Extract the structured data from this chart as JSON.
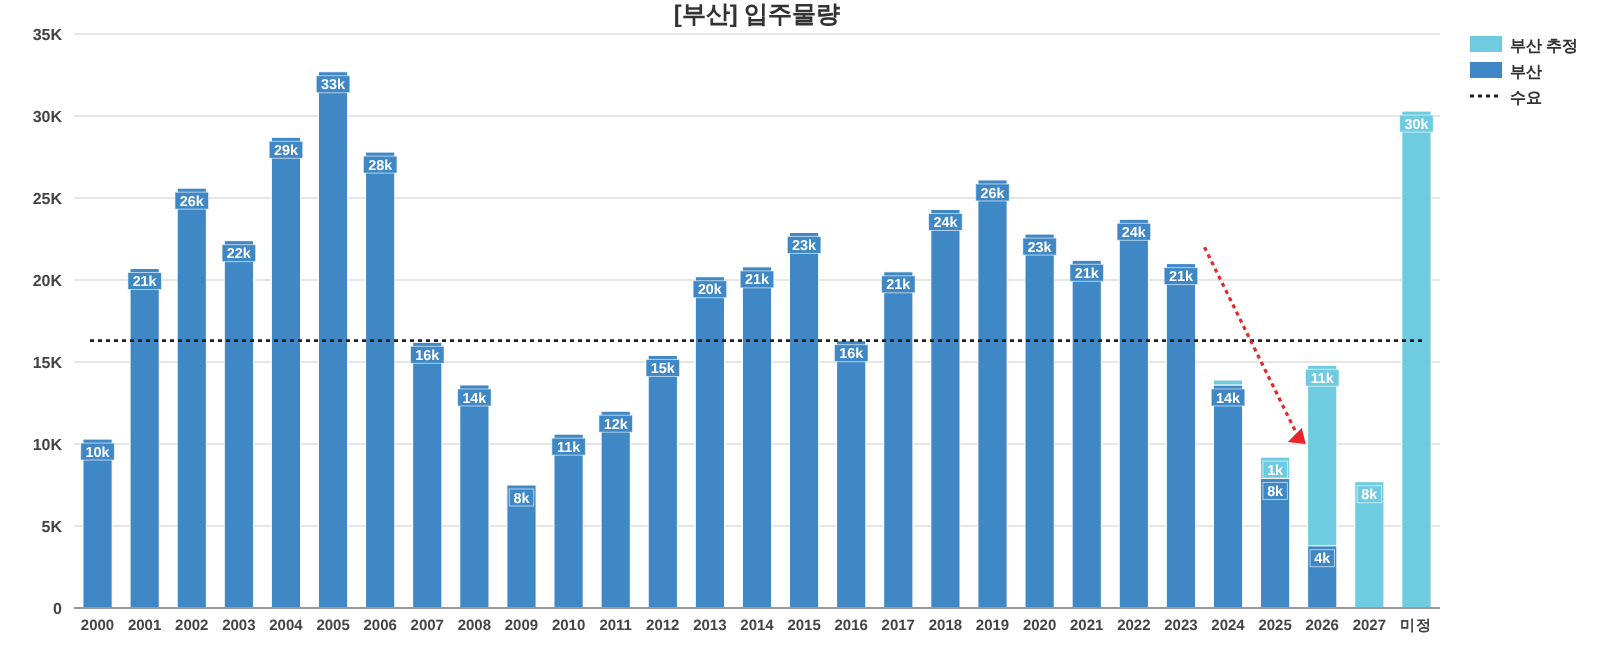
{
  "chart_data": {
    "type": "bar",
    "title": "[부산] 입주물량",
    "stacked": true,
    "grid": "y",
    "legend": "top right",
    "categories": [
      "2000",
      "2001",
      "2002",
      "2003",
      "2004",
      "2005",
      "2006",
      "2007",
      "2008",
      "2009",
      "2010",
      "2011",
      "2012",
      "2013",
      "2014",
      "2015",
      "2016",
      "2017",
      "2018",
      "2019",
      "2020",
      "2021",
      "2022",
      "2023",
      "2024",
      "2025",
      "2026",
      "2027",
      "미정"
    ],
    "ylim": [
      0,
      35000
    ],
    "yticks": [
      {
        "value": 0,
        "label": "0"
      },
      {
        "value": 5000,
        "label": "5K"
      },
      {
        "value": 10000,
        "label": "10K"
      },
      {
        "value": 15000,
        "label": "15K"
      },
      {
        "value": 20000,
        "label": "20K"
      },
      {
        "value": 25000,
        "label": "25K"
      },
      {
        "value": 30000,
        "label": "30K"
      },
      {
        "value": 35000,
        "label": "35K"
      }
    ],
    "series": [
      {
        "name": "부산",
        "color": "#3f88c5",
        "values": [
          10300,
          20700,
          25600,
          22400,
          28700,
          32700,
          27800,
          16200,
          13600,
          7500,
          10600,
          12000,
          15400,
          20200,
          20800,
          22900,
          16300,
          20500,
          24300,
          26100,
          22800,
          21200,
          23700,
          21000,
          13600,
          7900,
          3800,
          null,
          null
        ],
        "value_labels": [
          "10k",
          "21k",
          "26k",
          "22k",
          "29k",
          "33k",
          "28k",
          "16k",
          "14k",
          "8k",
          "11k",
          "12k",
          "15k",
          "20k",
          "21k",
          "23k",
          "16k",
          "21k",
          "24k",
          "26k",
          "23k",
          "21k",
          "24k",
          "21k",
          "14k",
          "8k",
          "4k",
          null,
          null
        ]
      },
      {
        "name": "부산 추정",
        "color": "#6ecbe0",
        "values": [
          null,
          null,
          null,
          null,
          null,
          null,
          null,
          null,
          null,
          null,
          null,
          null,
          null,
          null,
          null,
          null,
          null,
          null,
          null,
          null,
          null,
          null,
          null,
          null,
          300,
          1300,
          11000,
          7700,
          30300
        ],
        "value_labels": [
          null,
          null,
          null,
          null,
          null,
          null,
          null,
          null,
          null,
          null,
          null,
          null,
          null,
          null,
          null,
          null,
          null,
          null,
          null,
          null,
          null,
          null,
          null,
          null,
          null,
          "1k",
          "11k",
          "8k",
          "30k"
        ]
      }
    ],
    "ref_lines": [
      {
        "axis": "y",
        "value": 16300,
        "label": "수요",
        "color": "#222222",
        "line_style": "dotted"
      }
    ]
  }
}
